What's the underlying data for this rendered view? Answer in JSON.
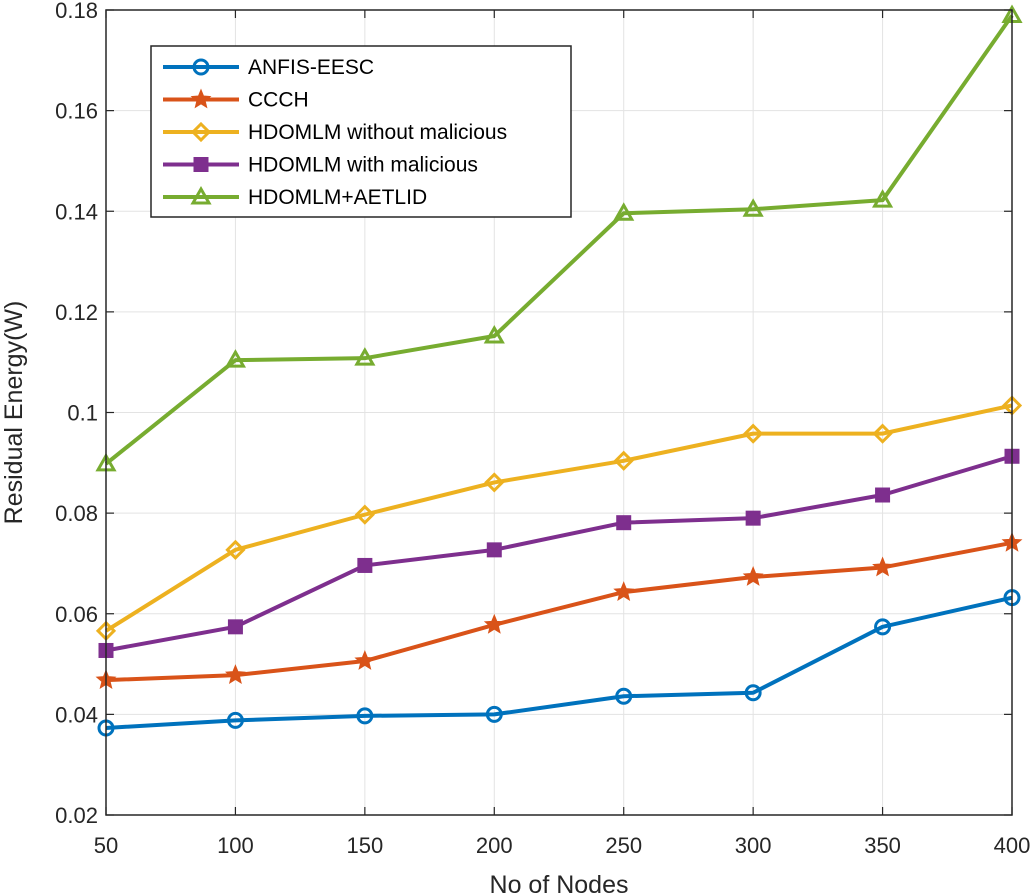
{
  "chart_data": {
    "type": "line",
    "title": "",
    "xlabel": "No of Nodes",
    "ylabel": "Residual Energy(W)",
    "x": [
      50,
      100,
      150,
      200,
      250,
      300,
      350,
      400
    ],
    "xticks": [
      "50",
      "100",
      "150",
      "200",
      "250",
      "300",
      "350",
      "400"
    ],
    "yticks": [
      "0.02",
      "0.04",
      "0.06",
      "0.08",
      "0.1",
      "0.12",
      "0.14",
      "0.16",
      "0.18"
    ],
    "xlim": [
      50,
      400
    ],
    "ylim": [
      0.02,
      0.18
    ],
    "grid": true,
    "legend_position": "top-left",
    "series": [
      {
        "name": "ANFIS-EESC",
        "color": "#0072BD",
        "marker": "circle",
        "values": [
          0.0373,
          0.0388,
          0.0397,
          0.04,
          0.0436,
          0.0443,
          0.0574,
          0.0632
        ]
      },
      {
        "name": "CCCH",
        "color": "#D95319",
        "marker": "star",
        "values": [
          0.0468,
          0.0478,
          0.0506,
          0.0578,
          0.0643,
          0.0673,
          0.0692,
          0.0741
        ]
      },
      {
        "name": "HDOMLM without malicious",
        "color": "#EDB120",
        "marker": "diamond",
        "values": [
          0.0566,
          0.0727,
          0.0797,
          0.0861,
          0.0904,
          0.0958,
          0.0958,
          0.1014
        ]
      },
      {
        "name": "HDOMLM with malicious",
        "color": "#7E2F8E",
        "marker": "square",
        "values": [
          0.0527,
          0.0574,
          0.0696,
          0.0727,
          0.0781,
          0.079,
          0.0836,
          0.0913
        ]
      },
      {
        "name": "HDOMLM+AETLID",
        "color": "#77AC30",
        "marker": "triangle",
        "values": [
          0.0898,
          0.1104,
          0.1108,
          0.1152,
          0.1396,
          0.1404,
          0.1422,
          0.1789
        ]
      }
    ]
  }
}
